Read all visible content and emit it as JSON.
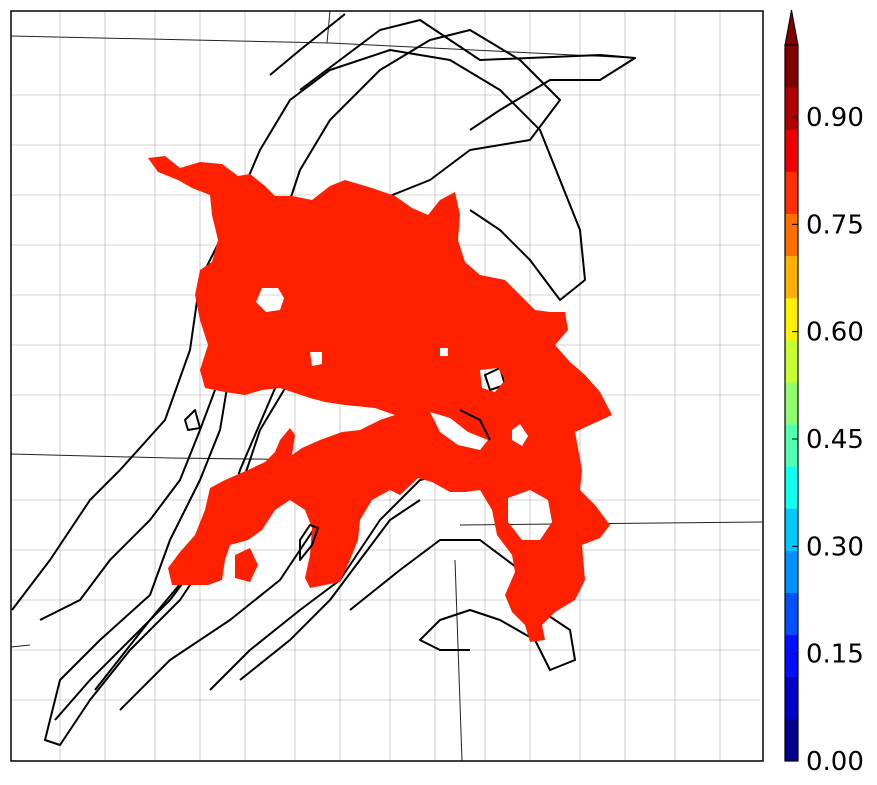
{
  "map": {
    "background_color": "#ffffff",
    "probability_fill_color": "#ff2000",
    "outline_color": "#000000",
    "boundary_color": "#999999"
  },
  "colorbar": {
    "tick_labels": [
      "0.00",
      "0.15",
      "0.30",
      "0.45",
      "0.60",
      "0.75",
      "0.90"
    ],
    "extend": "max",
    "colors": [
      "#00008f",
      "#0000c8",
      "#0010ff",
      "#0050ff",
      "#0090ff",
      "#00c8ff",
      "#10ffef",
      "#50ffaf",
      "#8fff70",
      "#c8ff30",
      "#ffef00",
      "#ffb000",
      "#ff7000",
      "#ff3000",
      "#ef0000",
      "#b00000",
      "#800000"
    ]
  }
}
